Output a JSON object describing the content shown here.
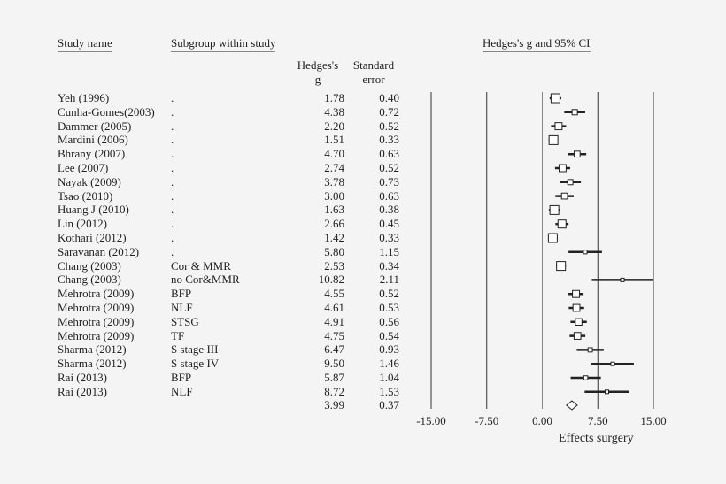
{
  "chart_data": {
    "type": "forest",
    "headers": {
      "study": "Study name",
      "subgroup": "Subgroup within study",
      "plot": "Hedges's g and 95% CI",
      "g_line1": "Hedges's",
      "g_line2": "g",
      "se_line1": "Standard",
      "se_line2": "error"
    },
    "rows": [
      {
        "study": "Yeh (1996)",
        "subgroup": ".",
        "g": "1.78",
        "se": "0.40"
      },
      {
        "study": "Cunha-Gomes(2003)",
        "subgroup": ".",
        "g": "4.38",
        "se": "0.72"
      },
      {
        "study": "Dammer (2005)",
        "subgroup": ".",
        "g": "2.20",
        "se": "0.52"
      },
      {
        "study": "Mardini (2006)",
        "subgroup": ".",
        "g": "1.51",
        "se": "0.33"
      },
      {
        "study": "Bhrany (2007)",
        "subgroup": ".",
        "g": "4.70",
        "se": "0.63"
      },
      {
        "study": "Lee (2007)",
        "subgroup": ".",
        "g": "2.74",
        "se": "0.52"
      },
      {
        "study": "Nayak (2009)",
        "subgroup": ".",
        "g": "3.78",
        "se": "0.73"
      },
      {
        "study": "Tsao (2010)",
        "subgroup": ".",
        "g": "3.00",
        "se": "0.63"
      },
      {
        "study": "Huang J (2010)",
        "subgroup": ".",
        "g": "1.63",
        "se": "0.38"
      },
      {
        "study": "Lin (2012)",
        "subgroup": ".",
        "g": "2.66",
        "se": "0.45"
      },
      {
        "study": "Kothari (2012)",
        "subgroup": ".",
        "g": "1.42",
        "se": "0.33"
      },
      {
        "study": "Saravanan (2012)",
        "subgroup": ".",
        "g": "5.80",
        "se": "1.15"
      },
      {
        "study": "Chang (2003)",
        "subgroup": "Cor & MMR",
        "g": "2.53",
        "se": "0.34"
      },
      {
        "study": "Chang (2003)",
        "subgroup": "no Cor&MMR",
        "g": "10.82",
        "se": "2.11"
      },
      {
        "study": "Mehrotra (2009)",
        "subgroup": "BFP",
        "g": "4.55",
        "se": "0.52"
      },
      {
        "study": "Mehrotra (2009)",
        "subgroup": "NLF",
        "g": "4.61",
        "se": "0.53"
      },
      {
        "study": "Mehrotra (2009)",
        "subgroup": "STSG",
        "g": "4.91",
        "se": "0.56"
      },
      {
        "study": "Mehrotra (2009)",
        "subgroup": "TF",
        "g": "4.75",
        "se": "0.54"
      },
      {
        "study": "Sharma (2012)",
        "subgroup": "S stage III",
        "g": "6.47",
        "se": "0.93"
      },
      {
        "study": "Sharma (2012)",
        "subgroup": "S stage IV",
        "g": "9.50",
        "se": "1.46"
      },
      {
        "study": "Rai (2013)",
        "subgroup": "BFP",
        "g": "5.87",
        "se": "1.04"
      },
      {
        "study": "Rai (2013)",
        "subgroup": "NLF",
        "g": "8.72",
        "se": "1.53"
      }
    ],
    "summary": {
      "g": "3.99",
      "se": "0.37"
    },
    "xlim": [
      -15,
      15
    ],
    "xticks": [
      "-15.00",
      "-7.50",
      "0.00",
      "7.50",
      "15.00"
    ],
    "xlabel": "Effects surgery",
    "grid": true
  }
}
